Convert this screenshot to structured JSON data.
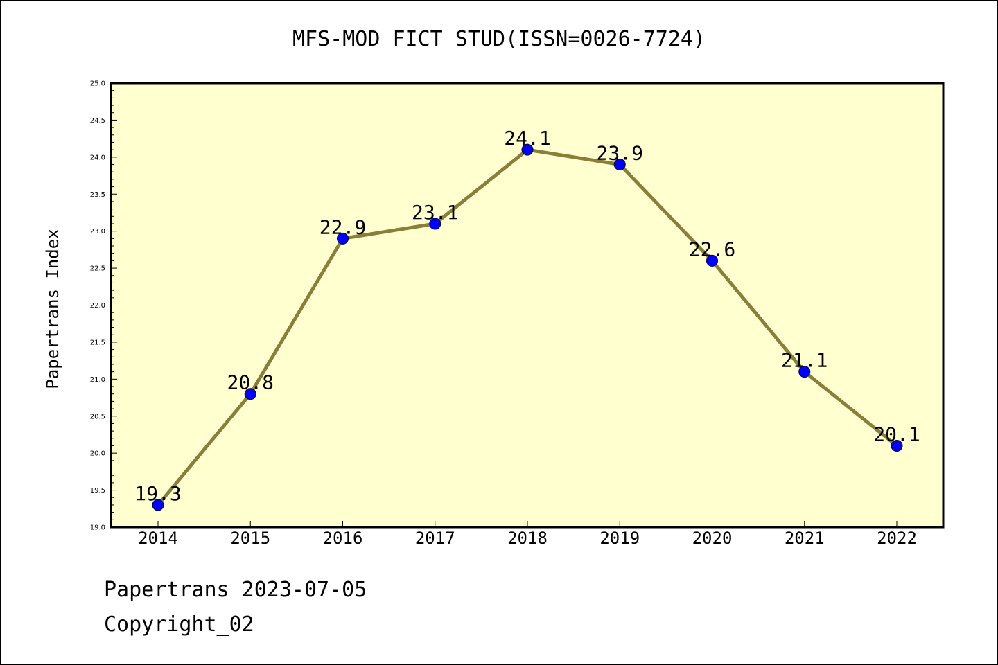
{
  "chart_data": {
    "type": "line",
    "title": "MFS-MOD FICT STUD(ISSN=0026-7724)",
    "xlabel": "",
    "ylabel": "Papertrans Index",
    "categories": [
      "2014",
      "2015",
      "2016",
      "2017",
      "2018",
      "2019",
      "2020",
      "2021",
      "2022"
    ],
    "series": [
      {
        "values": [
          19.3,
          20.8,
          22.9,
          23.1,
          24.1,
          23.9,
          22.6,
          21.1,
          20.1
        ]
      }
    ],
    "data_labels": [
      "19.3",
      "20.8",
      "22.9",
      "23.1",
      "24.1",
      "23.9",
      "22.6",
      "21.1",
      "20.1"
    ],
    "ylim": [
      19.0,
      25.0
    ],
    "yticks": [
      "19.0",
      "19.5",
      "20.0",
      "20.5",
      "21.0",
      "21.5",
      "22.0",
      "22.5",
      "23.0",
      "23.5",
      "24.0",
      "24.5",
      "25.0"
    ],
    "grid": false,
    "legend": "none",
    "colors": {
      "plot_background": "#ffffd0",
      "line": "#8b7d3a",
      "marker": "#0000ff"
    }
  },
  "footer": {
    "line1": "Papertrans 2023-07-05",
    "line2": "Copyright_02"
  }
}
